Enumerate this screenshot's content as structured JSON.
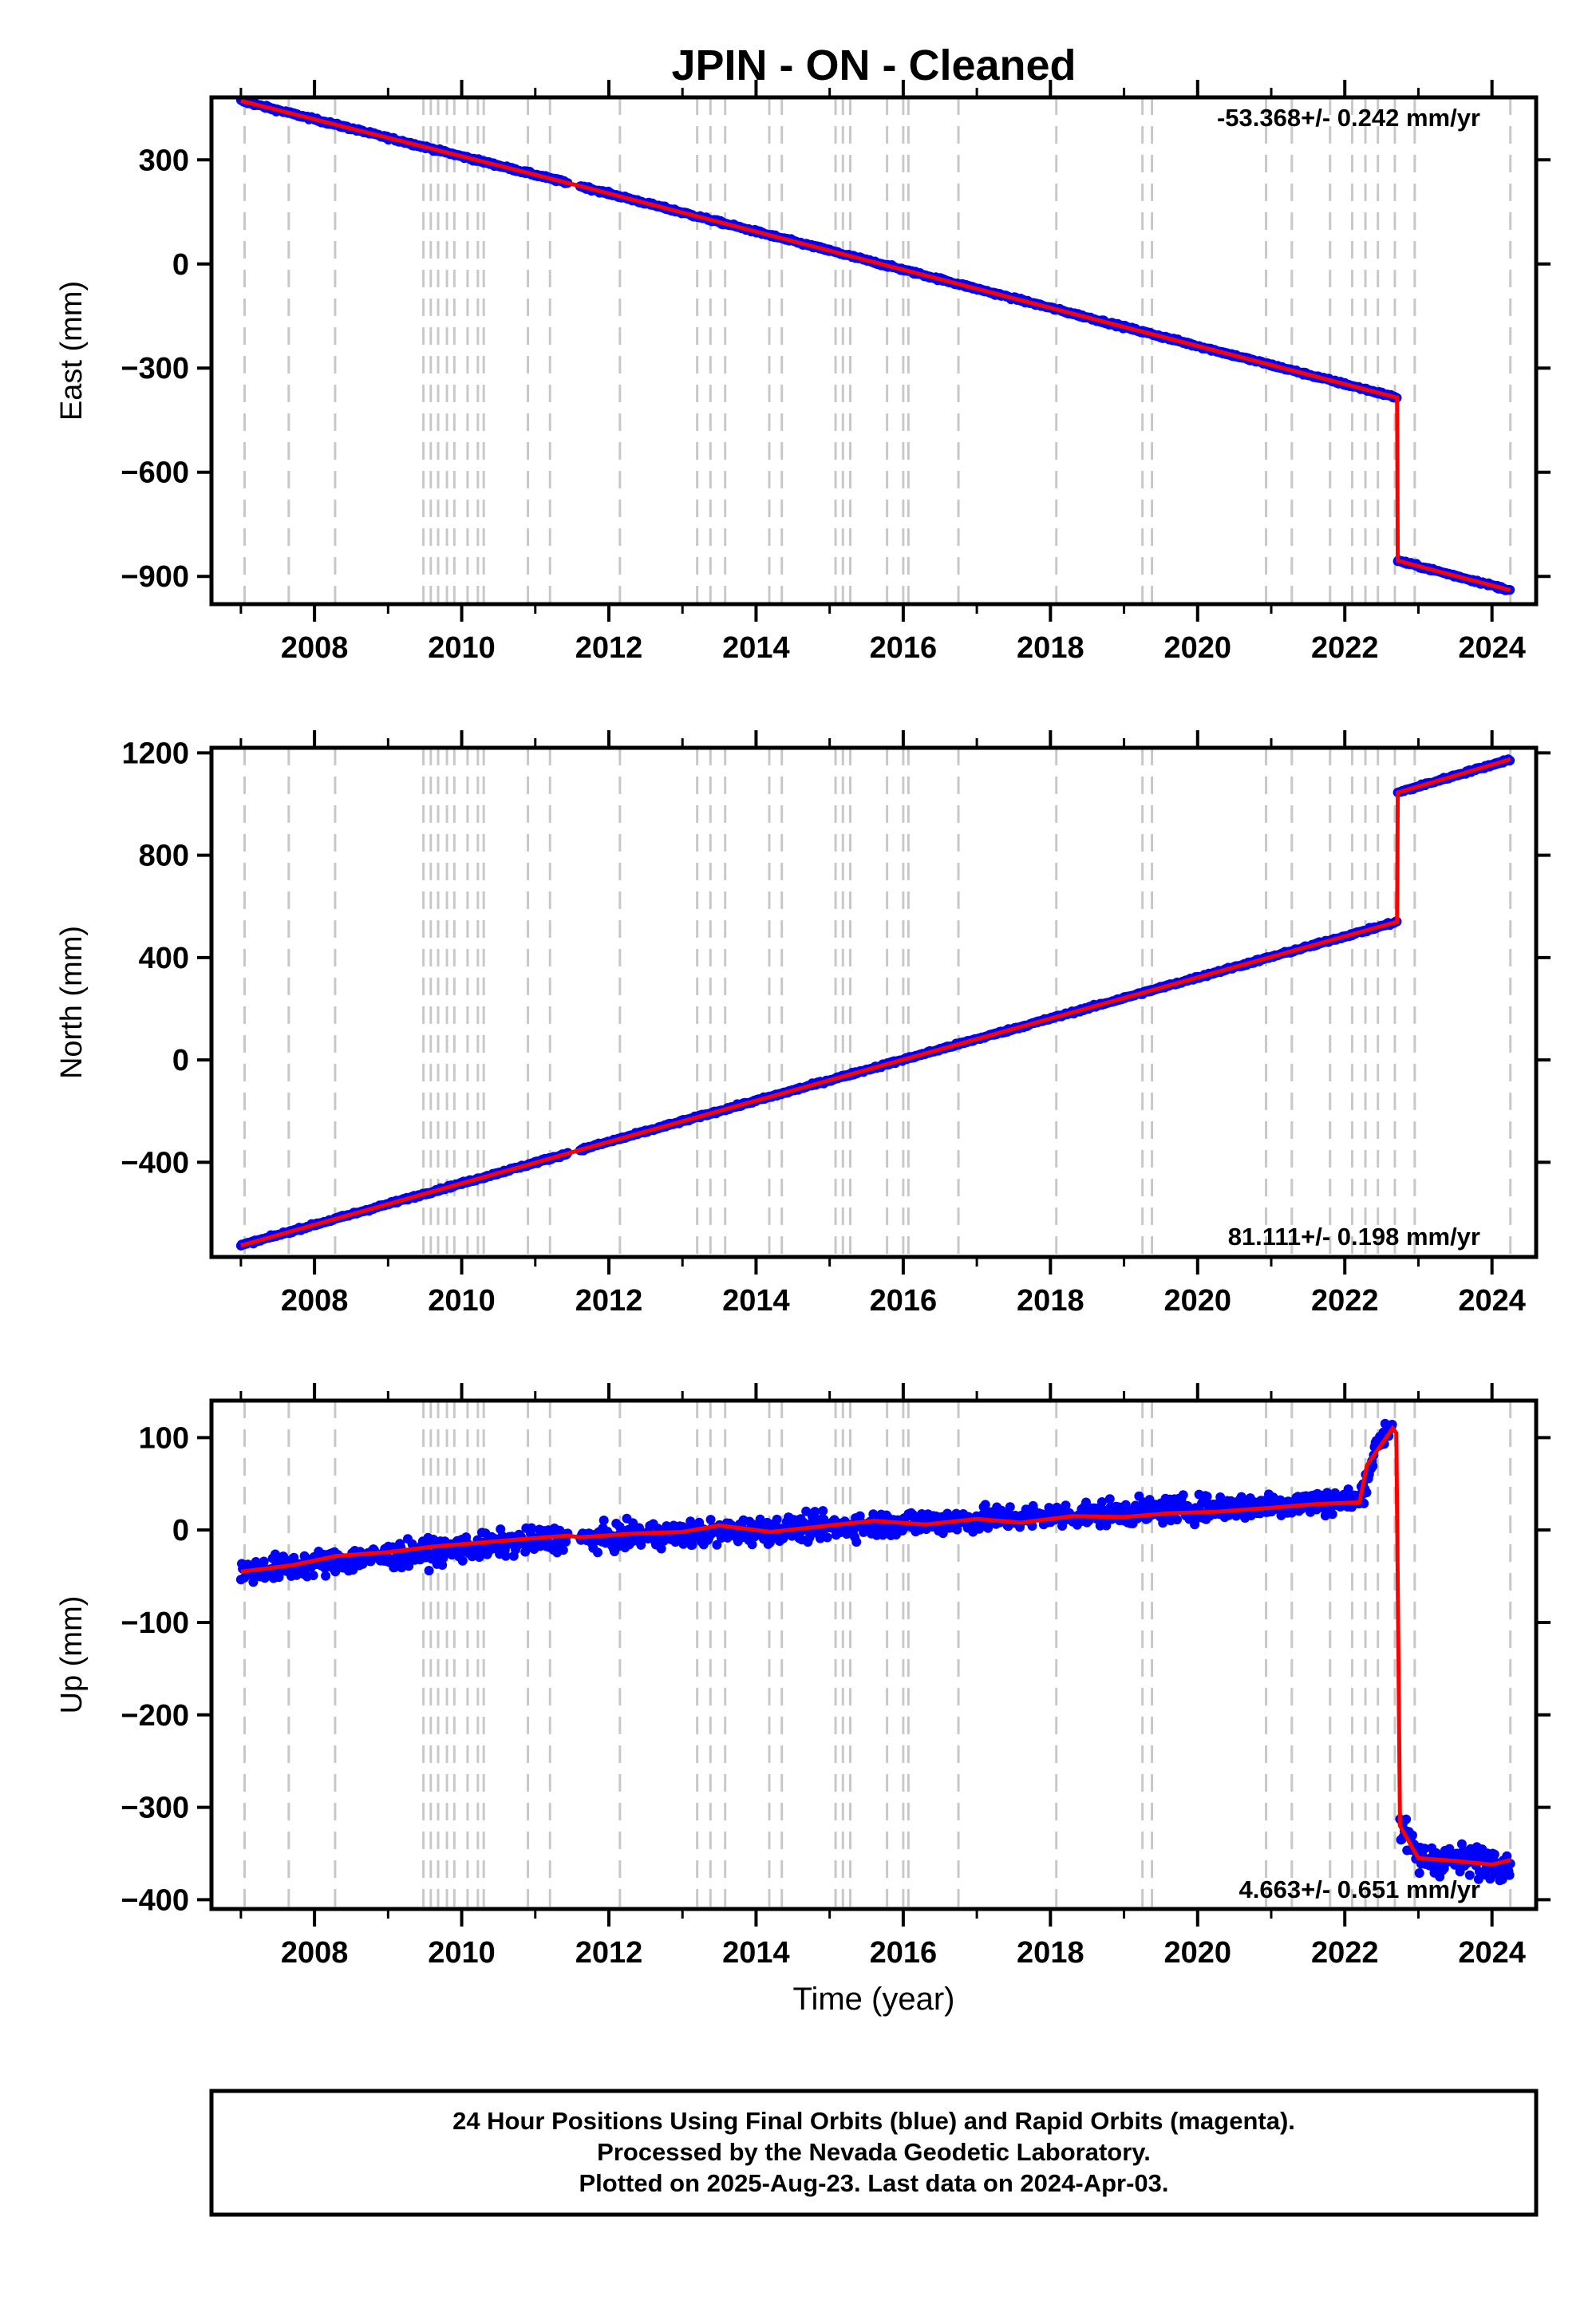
{
  "title": "JPIN  - ON - Cleaned",
  "colors": {
    "points": "#0000ff",
    "fit": "#ff0000",
    "event_lines": "#c8c8c8",
    "frame": "#000000"
  },
  "xlabel": "Time (year)",
  "xlim": [
    2006.6,
    2024.6
  ],
  "x_tick_labels": [
    "2008",
    "2010",
    "2012",
    "2014",
    "2016",
    "2018",
    "2020",
    "2022",
    "2024"
  ],
  "event_years": [
    2007.05,
    2007.65,
    2008.28,
    2009.48,
    2009.58,
    2009.68,
    2009.8,
    2009.9,
    2010.08,
    2010.22,
    2010.3,
    2010.9,
    2011.2,
    2012.15,
    2013.2,
    2013.38,
    2013.58,
    2014.18,
    2014.35,
    2015.08,
    2015.18,
    2015.28,
    2015.78,
    2016.0,
    2016.07,
    2016.75,
    2018.08,
    2019.25,
    2019.38,
    2020.93,
    2021.28,
    2021.8,
    2022.1,
    2022.28,
    2022.45,
    2022.68,
    2022.95,
    2024.25
  ],
  "chart_data": [
    {
      "type": "scatter",
      "panel": "east",
      "ylabel": "East (mm)",
      "ylim": [
        -980,
        480
      ],
      "y_tick_labels": [
        "300",
        "0",
        "−300",
        "−600",
        "−900"
      ],
      "rate_label": "-53.368+/- 0.242 mm/yr",
      "series": [
        {
          "role": "daily positions",
          "segments": [
            {
              "x": [
                2007.0,
                2024.25
              ],
              "slope": -53.368,
              "start": 470,
              "gap": [
                2011.45,
                2011.6
              ],
              "noise": 4
            },
            {
              "x": [
                2007.0,
                2011.45,
                2011.6,
                2022.71
              ],
              "y": [
                470,
                233,
                225,
                -385
              ]
            },
            {
              "x": [
                2022.72,
                2024.25
              ],
              "y": [
                -855,
                -940
              ]
            }
          ]
        },
        {
          "role": "fit",
          "x": [
            2007.0,
            2011.45,
            2011.6,
            2022.71,
            2022.72,
            2024.25
          ],
          "y": [
            470,
            233,
            225,
            -385,
            -855,
            -940
          ]
        }
      ]
    },
    {
      "type": "scatter",
      "panel": "north",
      "ylabel": "North (mm)",
      "ylim": [
        -770,
        1220
      ],
      "y_tick_labels": [
        "1200",
        "800",
        "400",
        "0",
        "−400"
      ],
      "rate_label": "81.111+/- 0.198 mm/yr",
      "series": [
        {
          "role": "daily positions",
          "segments": [
            {
              "x": [
                2007.0,
                2011.45,
                2011.6,
                2022.71
              ],
              "y": [
                -725,
                -365,
                -352,
                540
              ],
              "noise": 5
            },
            {
              "x": [
                2022.72,
                2024.25
              ],
              "y": [
                1045,
                1175
              ],
              "noise": 5
            }
          ]
        },
        {
          "role": "fit",
          "x": [
            2007.0,
            2011.45,
            2011.6,
            2022.71,
            2022.72,
            2024.25
          ],
          "y": [
            -725,
            -365,
            -352,
            540,
            1045,
            1175
          ]
        }
      ]
    },
    {
      "type": "scatter",
      "panel": "up",
      "ylabel": "Up (mm)",
      "ylim": [
        -410,
        140
      ],
      "y_tick_labels": [
        "100",
        "0",
        "−100",
        "−200",
        "−300",
        "−400"
      ],
      "rate_label": "4.663+/- 0.651 mm/yr",
      "series": [
        {
          "role": "daily positions",
          "segments": [
            {
              "x": [
                2007.0,
                2011.45,
                2011.6,
                2022.2
              ],
              "y": [
                -45,
                -8,
                -10,
                32
              ],
              "noise": 8
            },
            {
              "x": [
                2022.2,
                2022.45,
                2022.65
              ],
              "y": [
                32,
                95,
                115
              ],
              "noise": 8
            },
            {
              "x": [
                2022.75,
                2023.0,
                2024.25
              ],
              "y": [
                -320,
                -355,
                -360
              ],
              "noise": 10
            }
          ]
        },
        {
          "role": "fit",
          "x": [
            2007.0,
            2007.7,
            2008.3,
            2009.0,
            2009.6,
            2010.2,
            2010.8,
            2011.45,
            2011.6,
            2012.3,
            2013.0,
            2013.5,
            2014.2,
            2015.0,
            2015.6,
            2016.3,
            2017.0,
            2017.6,
            2018.3,
            2019.0,
            2019.6,
            2020.3,
            2021.0,
            2021.6,
            2022.2,
            2022.3,
            2022.65,
            2022.7,
            2022.75,
            2023.0,
            2023.5,
            2024.0,
            2024.25
          ],
          "y": [
            -45,
            -38,
            -28,
            -24,
            -18,
            -14,
            -10,
            -6,
            -8,
            -4,
            -2,
            5,
            -2,
            5,
            10,
            6,
            12,
            8,
            15,
            14,
            18,
            20,
            24,
            28,
            30,
            70,
            110,
            105,
            -320,
            -355,
            -358,
            -362,
            -357
          ]
        }
      ]
    }
  ],
  "footer": [
    "24 Hour Positions Using Final Orbits (blue) and Rapid Orbits (magenta).",
    "Processed by the Nevada Geodetic Laboratory.",
    "Plotted on 2025-Aug-23. Last data on 2024-Apr-03."
  ]
}
